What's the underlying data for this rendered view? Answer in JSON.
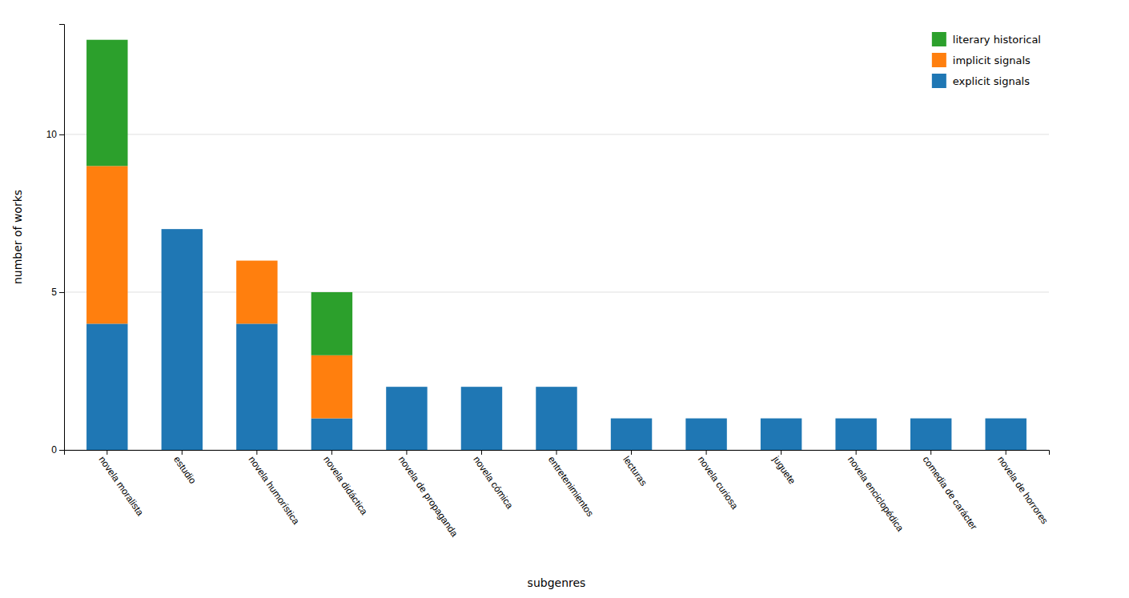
{
  "chart_data": {
    "type": "bar",
    "stacked": true,
    "xlabel": "subgenres",
    "ylabel": "number of works",
    "categories": [
      "novela moralista",
      "estudio",
      "novela humorística",
      "novela didáctica",
      "novela de propaganda",
      "novela cómica",
      "entretenimientos",
      "lecturas",
      "novela curiosa",
      "juguete",
      "novela enciclopédica",
      "comedia de carácter",
      "novela de horrores"
    ],
    "series": [
      {
        "name": "explicit signals",
        "values": [
          4,
          7,
          4,
          1,
          2,
          2,
          2,
          1,
          1,
          1,
          1,
          1,
          1
        ]
      },
      {
        "name": "implicit signals",
        "values": [
          5,
          0,
          2,
          2,
          0,
          0,
          0,
          0,
          0,
          0,
          0,
          0,
          0
        ]
      },
      {
        "name": "literary historical",
        "values": [
          4,
          0,
          0,
          2,
          0,
          0,
          0,
          0,
          0,
          0,
          0,
          0,
          0
        ]
      }
    ],
    "ylim": [
      0,
      13.5
    ],
    "yticks": [
      0,
      5,
      10
    ],
    "grid": true,
    "legend": "upper right"
  }
}
